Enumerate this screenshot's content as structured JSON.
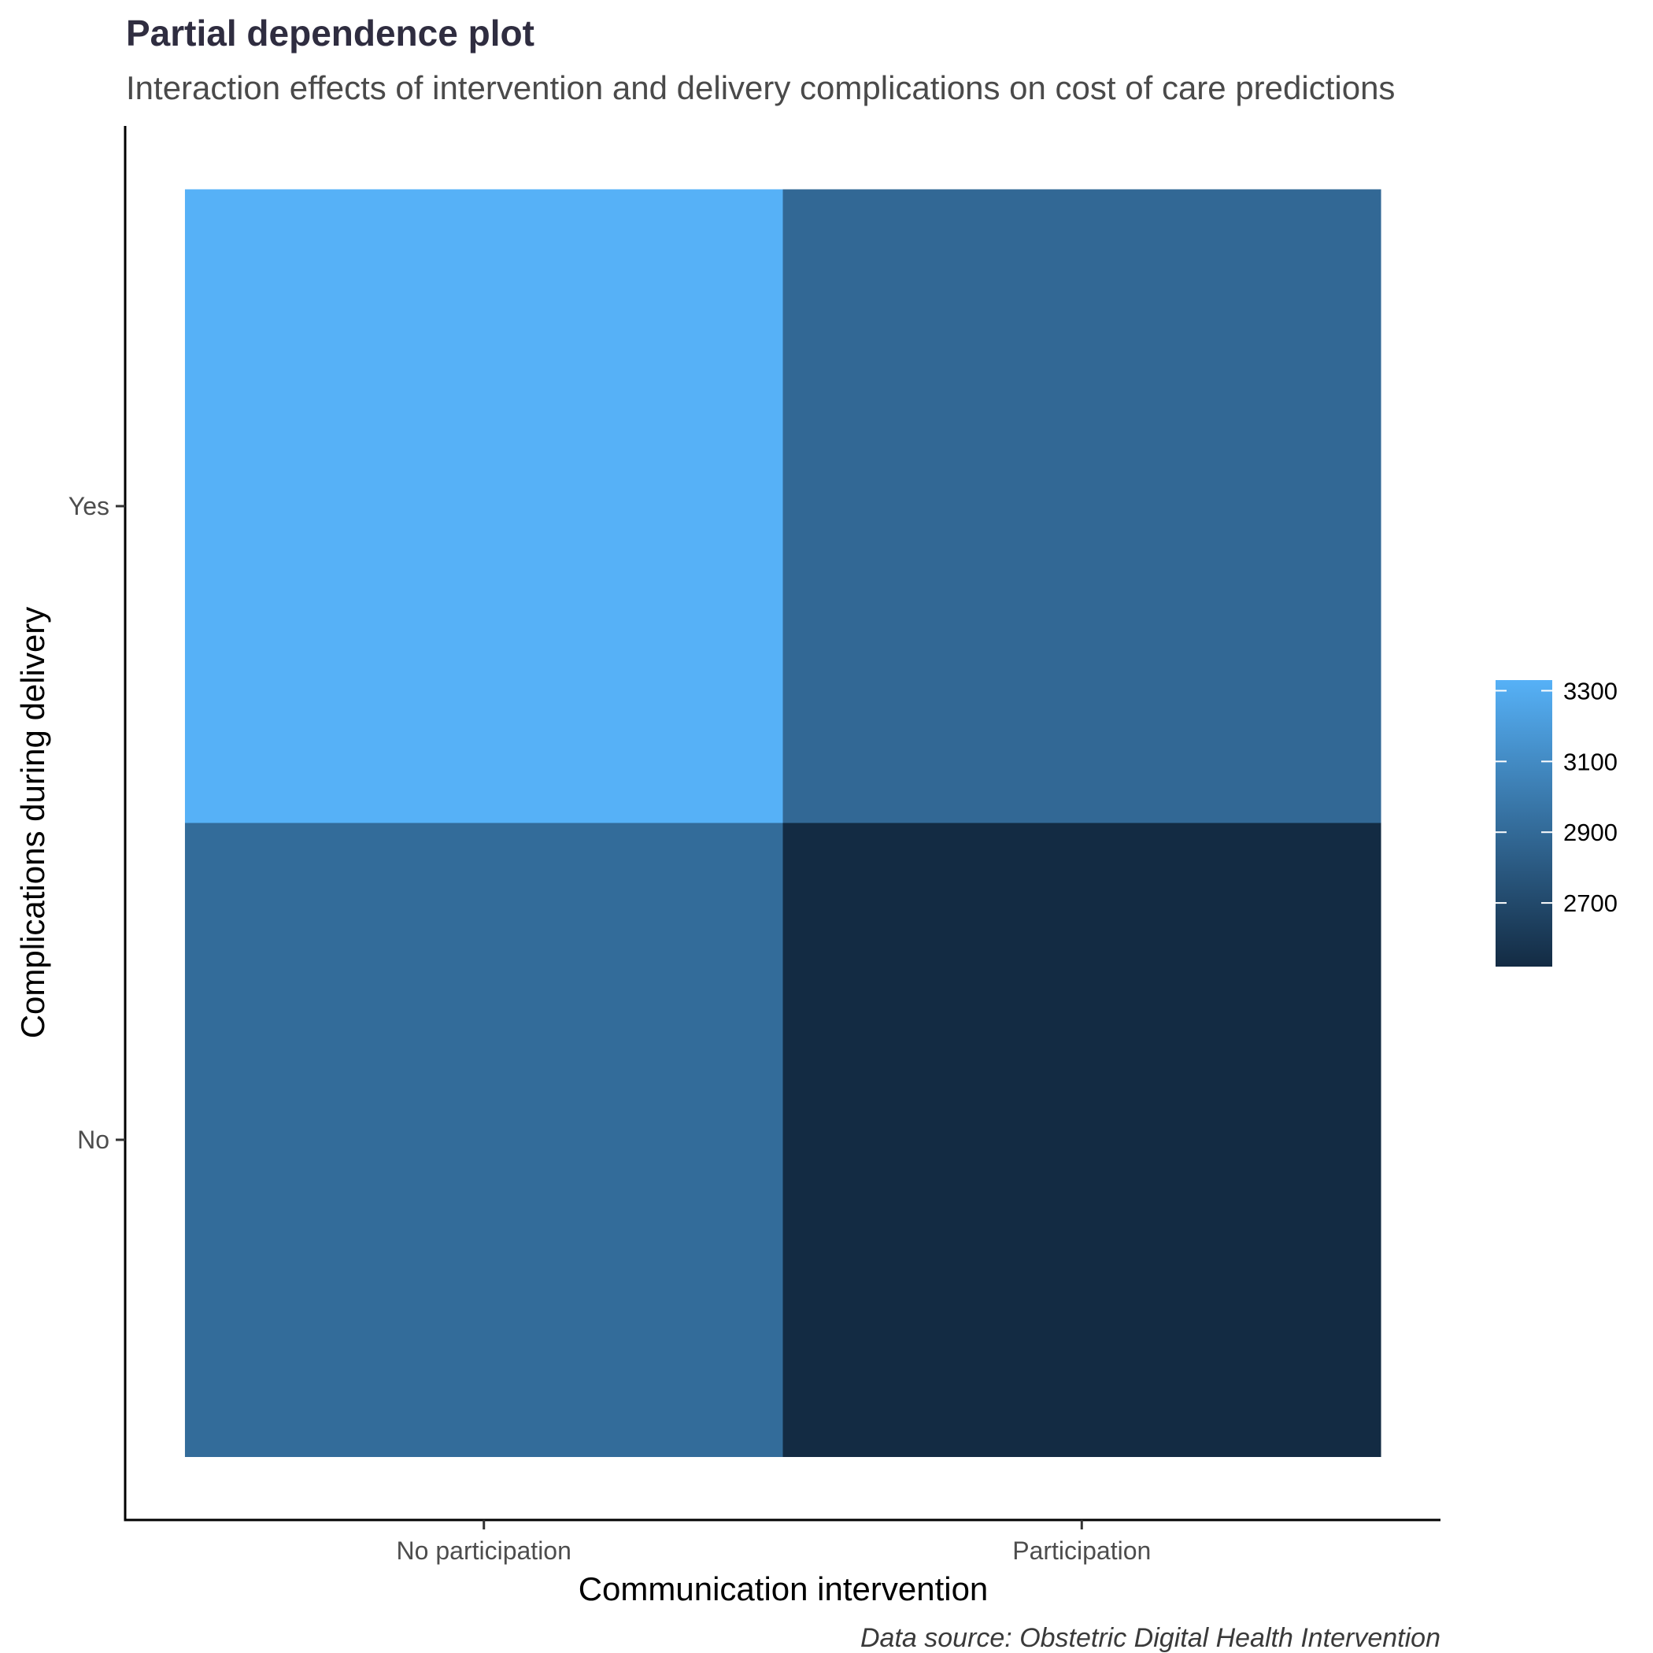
{
  "chart_data": {
    "type": "heatmap",
    "title": "Partial dependence plot",
    "subtitle": "Interaction effects of intervention and delivery complications on cost of care predictions",
    "xlabel": "Communication intervention",
    "ylabel": "Complications during delivery",
    "caption": "Data source: Obstetric Digital Health Intervention",
    "x_categories": [
      "No participation",
      "Participation"
    ],
    "y_categories": [
      "No",
      "Yes"
    ],
    "cells": [
      {
        "x": "No participation",
        "y": "Yes",
        "value": 3330
      },
      {
        "x": "Participation",
        "y": "Yes",
        "value": 2890
      },
      {
        "x": "No participation",
        "y": "No",
        "value": 2910
      },
      {
        "x": "Participation",
        "y": "No",
        "value": 2520
      }
    ],
    "legend": {
      "placement": "right",
      "min": 2520,
      "max": 3330,
      "ticks": [
        2700,
        2900,
        3100,
        3300
      ],
      "tick_labels": [
        "2700",
        "2900",
        "3100",
        "3300"
      ],
      "low_color": "#132B43",
      "high_color": "#56B1F7"
    },
    "grid": false
  }
}
